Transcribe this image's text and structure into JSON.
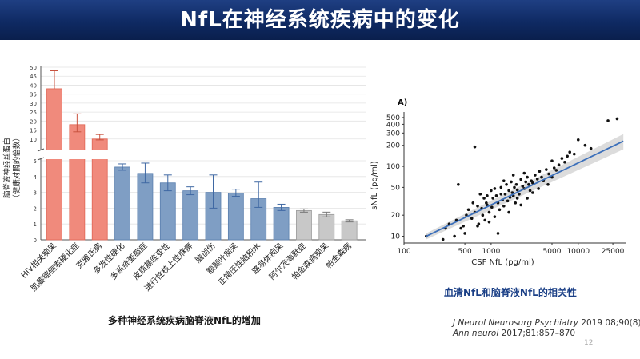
{
  "slide": {
    "title": "NfL在神经系统疾病中的变化",
    "left_caption": "多种神经系统疾病脑脊液NfL的增加",
    "right_caption": "血清NfL和脑脊液NfL的相关性",
    "refs": [
      {
        "journal": "J Neurol Neurosurg Psychiatry",
        "detail": " 2019 08;90(8)"
      },
      {
        "journal": "Ann neurol",
        "detail": " 2017;81:857–870"
      }
    ],
    "page_number": "12"
  },
  "colors": {
    "red": "#f08a7c",
    "blue": "#7f9ec4",
    "gray": "#c8c8c8",
    "regression": "#3b6fba",
    "band": "#d7d7d7"
  },
  "chart_data": [
    {
      "type": "bar",
      "ylabel_line1": "脑脊液神经丝蛋白",
      "ylabel_line2": "（健康对照的倍数）",
      "axis_break": true,
      "ylim_lower": [
        0,
        5
      ],
      "ylim_upper": [
        5,
        50
      ],
      "yticks_lower": [
        "0",
        "1",
        "2",
        "3",
        "4",
        "5"
      ],
      "yticks_upper": [
        "10",
        "15",
        "20",
        "25",
        "30",
        "35",
        "40",
        "45",
        "50"
      ],
      "categories": [
        "HIV相关痴呆",
        "肌萎缩侧索硬化症",
        "克雅氏病",
        "多发性硬化",
        "多系统萎缩症",
        "皮质基底变性",
        "进行性核上性麻痹",
        "脑创伤",
        "额颞叶痴呆",
        "正常压性脑积水",
        "路易体痴呆",
        "阿尔茨海默症",
        "帕金森病痴呆",
        "帕金森病"
      ],
      "values": [
        38,
        18,
        10,
        4.6,
        4.2,
        3.6,
        3.1,
        3.0,
        2.95,
        2.6,
        2.05,
        1.85,
        1.6,
        1.2
      ],
      "error_high": [
        48,
        24,
        12.5,
        4.8,
        4.85,
        4.1,
        3.35,
        4.1,
        3.2,
        3.65,
        2.25,
        1.95,
        1.75,
        1.27
      ],
      "error_low": [
        null,
        14,
        9.5,
        4.4,
        3.6,
        3.1,
        2.85,
        2.0,
        2.75,
        2.05,
        1.85,
        1.75,
        1.45,
        1.13
      ],
      "colors": [
        "red",
        "red",
        "red",
        "blue",
        "blue",
        "blue",
        "blue",
        "blue",
        "blue",
        "blue",
        "blue",
        "gray",
        "gray",
        "gray"
      ]
    },
    {
      "type": "scatter",
      "panel_label": "A)",
      "xlabel": "CSF NfL (pg/ml)",
      "ylabel": "sNfL (pg/ml)",
      "x_scale": "log",
      "y_scale": "log",
      "xlim": [
        100,
        35000
      ],
      "ylim": [
        8,
        600
      ],
      "xticks": [
        100,
        500,
        1000,
        5000,
        10000,
        25000
      ],
      "xtick_labels": [
        "100",
        "500",
        "1000",
        "5000",
        "10000",
        "25000"
      ],
      "yticks": [
        10,
        20,
        50,
        100,
        200,
        300,
        400,
        500
      ],
      "ytick_labels": [
        "10",
        "20",
        "50",
        "100",
        "200",
        "300",
        "400",
        "500"
      ],
      "regression": {
        "x0": 180,
        "y0": 10,
        "x1": 33000,
        "y1": 230
      },
      "band": {
        "low_start": 9,
        "high_start": 11,
        "low_end": 175,
        "high_end": 290
      },
      "points": [
        [
          180,
          10
        ],
        [
          280,
          9
        ],
        [
          300,
          13
        ],
        [
          330,
          15
        ],
        [
          380,
          10
        ],
        [
          400,
          17
        ],
        [
          420,
          55
        ],
        [
          450,
          13
        ],
        [
          480,
          14
        ],
        [
          500,
          11
        ],
        [
          520,
          20
        ],
        [
          550,
          24
        ],
        [
          600,
          18
        ],
        [
          620,
          30
        ],
        [
          650,
          22
        ],
        [
          700,
          27
        ],
        [
          720,
          15
        ],
        [
          750,
          40
        ],
        [
          780,
          25
        ],
        [
          800,
          20
        ],
        [
          830,
          35
        ],
        [
          850,
          17
        ],
        [
          880,
          30
        ],
        [
          900,
          28
        ],
        [
          950,
          22
        ],
        [
          1000,
          45
        ],
        [
          1020,
          26
        ],
        [
          1050,
          35
        ],
        [
          1100,
          19
        ],
        [
          1150,
          38
        ],
        [
          1200,
          30
        ],
        [
          1250,
          24
        ],
        [
          1300,
          50
        ],
        [
          1350,
          33
        ],
        [
          1400,
          27
        ],
        [
          1450,
          40
        ],
        [
          1500,
          55
        ],
        [
          1550,
          32
        ],
        [
          1600,
          45
        ],
        [
          1650,
          36
        ],
        [
          1700,
          60
        ],
        [
          1750,
          42
        ],
        [
          1800,
          38
        ],
        [
          1850,
          50
        ],
        [
          1900,
          30
        ],
        [
          1950,
          55
        ],
        [
          2000,
          46
        ],
        [
          2100,
          40
        ],
        [
          2200,
          65
        ],
        [
          2300,
          52
        ],
        [
          2400,
          48
        ],
        [
          2500,
          60
        ],
        [
          2600,
          70
        ],
        [
          2700,
          55
        ],
        [
          2800,
          45
        ],
        [
          2900,
          62
        ],
        [
          3000,
          58
        ],
        [
          3200,
          75
        ],
        [
          3400,
          66
        ],
        [
          3600,
          85
        ],
        [
          3800,
          70
        ],
        [
          4000,
          62
        ],
        [
          4300,
          90
        ],
        [
          4600,
          78
        ],
        [
          5000,
          120
        ],
        [
          5300,
          95
        ],
        [
          5600,
          88
        ],
        [
          6000,
          105
        ],
        [
          6500,
          130
        ],
        [
          7000,
          115
        ],
        [
          7500,
          140
        ],
        [
          8000,
          160
        ],
        [
          9000,
          150
        ],
        [
          10000,
          240
        ],
        [
          12000,
          200
        ],
        [
          14000,
          180
        ],
        [
          22000,
          450
        ],
        [
          28000,
          480
        ],
        [
          700,
          14
        ],
        [
          1200,
          11
        ],
        [
          950,
          16
        ],
        [
          1600,
          22
        ],
        [
          2200,
          28
        ],
        [
          1100,
          48
        ],
        [
          1800,
          75
        ],
        [
          2600,
          35
        ],
        [
          3500,
          48
        ],
        [
          1400,
          62
        ],
        [
          900,
          38
        ],
        [
          3000,
          42
        ],
        [
          4500,
          55
        ],
        [
          650,
          190
        ],
        [
          2000,
          35
        ],
        [
          1300,
          40
        ],
        [
          5000,
          70
        ],
        [
          2400,
          80
        ]
      ]
    }
  ]
}
